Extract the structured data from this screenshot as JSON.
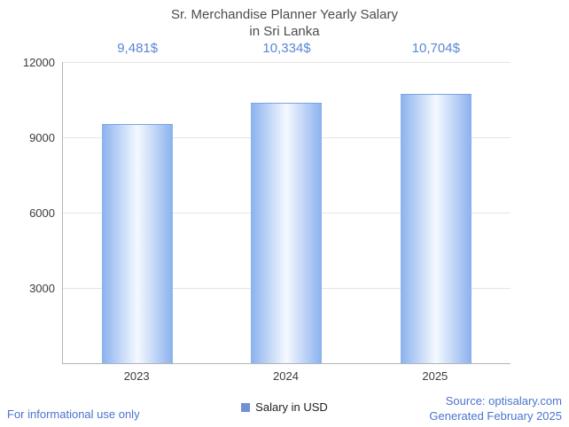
{
  "title": {
    "line1": "Sr. Merchandise Planner Yearly Salary",
    "line2": "in Sri Lanka"
  },
  "chart_data": {
    "type": "bar",
    "categories": [
      "2023",
      "2024",
      "2025"
    ],
    "values": [
      9481,
      10334,
      10704
    ],
    "value_labels": [
      "9,481$",
      "10,334$",
      "10,704$"
    ],
    "ylim": [
      0,
      12000
    ],
    "yticks": [
      "12000",
      "9000",
      "6000",
      "3000"
    ],
    "grid": true,
    "legend": "Salary in USD",
    "legend_position": "bottom",
    "colors": {
      "bar_edge": "#8ab1ee",
      "bar_center": "#f5f9ff",
      "bar_top": "#79a3e8",
      "label": "#5b87d5",
      "link": "#4a74cf",
      "legend_swatch": "#7191d6"
    }
  },
  "footer": {
    "left": "For informational use only",
    "source": "Source: optisalary.com",
    "generated": "Generated February 2025"
  }
}
